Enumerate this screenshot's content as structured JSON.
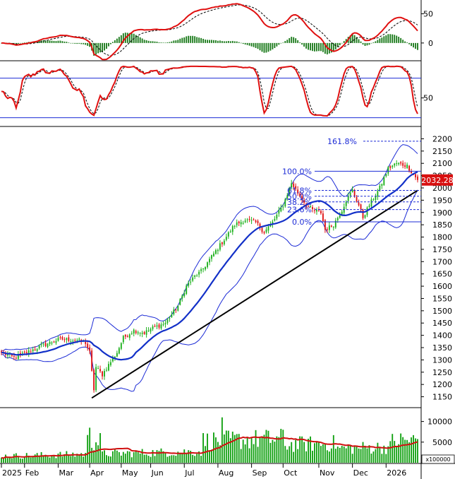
{
  "chart_data": {
    "type": "candlestick",
    "price_axis": {
      "ticks": [
        "2200",
        "2150",
        "2100",
        "2050",
        "2000",
        "1950",
        "1900",
        "1850",
        "1800",
        "1750",
        "1700",
        "1650",
        "1600",
        "1550",
        "1500",
        "1450",
        "1400",
        "1350",
        "1300",
        "1250",
        "1200",
        "1150"
      ],
      "ylim": [
        1120,
        2230
      ]
    },
    "last_price_label": "2032.28",
    "x_axis": {
      "labels": [
        {
          "label": "2025",
          "d": 0
        },
        {
          "label": "Feb",
          "d": 11
        },
        {
          "label": "Mar",
          "d": 27
        },
        {
          "label": "Apr",
          "d": 42
        },
        {
          "label": "May",
          "d": 57
        },
        {
          "label": "Jun",
          "d": 71
        },
        {
          "label": "Jul",
          "d": 87
        },
        {
          "label": "Aug",
          "d": 103
        },
        {
          "label": "Sep",
          "d": 119
        },
        {
          "label": "Oct",
          "d": 134
        },
        {
          "label": "Nov",
          "d": 151
        },
        {
          "label": "Dec",
          "d": 167
        },
        {
          "label": "2026",
          "d": 183
        }
      ],
      "n_days": 199
    },
    "price_anchors": [
      [
        0,
        1330
      ],
      [
        6,
        1310
      ],
      [
        12,
        1330
      ],
      [
        20,
        1360
      ],
      [
        28,
        1385
      ],
      [
        36,
        1380
      ],
      [
        40,
        1370
      ],
      [
        42,
        1330
      ],
      [
        43,
        1250
      ],
      [
        44,
        1180
      ],
      [
        45,
        1270
      ],
      [
        48,
        1240
      ],
      [
        51,
        1280
      ],
      [
        55,
        1330
      ],
      [
        58,
        1390
      ],
      [
        63,
        1420
      ],
      [
        68,
        1410
      ],
      [
        72,
        1430
      ],
      [
        78,
        1450
      ],
      [
        84,
        1520
      ],
      [
        88,
        1600
      ],
      [
        92,
        1640
      ],
      [
        95,
        1660
      ],
      [
        100,
        1720
      ],
      [
        106,
        1790
      ],
      [
        111,
        1850
      ],
      [
        116,
        1870
      ],
      [
        121,
        1860
      ],
      [
        125,
        1820
      ],
      [
        129,
        1860
      ],
      [
        134,
        1930
      ],
      [
        138,
        2020
      ],
      [
        141,
        1980
      ],
      [
        145,
        1930
      ],
      [
        148,
        1910
      ],
      [
        152,
        1900
      ],
      [
        154,
        1830
      ],
      [
        158,
        1850
      ],
      [
        162,
        1910
      ],
      [
        164,
        1950
      ],
      [
        167,
        1990
      ],
      [
        170,
        1930
      ],
      [
        172,
        1880
      ],
      [
        175,
        1930
      ],
      [
        180,
        2000
      ],
      [
        184,
        2080
      ],
      [
        188,
        2100
      ],
      [
        193,
        2090
      ],
      [
        198,
        2032
      ]
    ],
    "fibonacci_levels": [
      {
        "label": "161.8%",
        "price": 2190
      },
      {
        "label": "100.0%",
        "price": 2068
      },
      {
        "label": "61.8%",
        "price": 1990
      },
      {
        "label": "50.0%",
        "price": 1966
      },
      {
        "label": "38.2%",
        "price": 1943
      },
      {
        "label": "23.6%",
        "price": 1912
      },
      {
        "label": "0.0%",
        "price": 1862
      }
    ],
    "fib_x_start_day": 149,
    "trendline": [
      {
        "d": 43,
        "price": 1145
      },
      {
        "d": 198,
        "price": 1990
      }
    ],
    "macd_axis": {
      "ticks": [
        "50",
        "0"
      ],
      "ylim": [
        -28,
        70
      ]
    },
    "oscillator_axis": {
      "ticks": [
        "50"
      ],
      "ylim": [
        10,
        102
      ],
      "upper_line": 80,
      "lower_line": 20
    },
    "volume_axis": {
      "ticks": [
        "10000",
        "5000"
      ],
      "ylim": [
        0,
        12500
      ],
      "multiplier_label": "x100000"
    }
  },
  "colors": {
    "up_candle": "#1bb01b",
    "down_candle": "#e01010",
    "moving_average": "#1230c8",
    "bollinger": "#1c2bd6",
    "fibonacci": "#1c2bd6",
    "indicator_line": "#e01010",
    "signal_line": "#000000",
    "histogram": "#1a7a1a",
    "volume_bars": "#0fa00f",
    "volume_ma": "#d01010",
    "trendline": "#000000",
    "last_price_box": "#d81010"
  }
}
